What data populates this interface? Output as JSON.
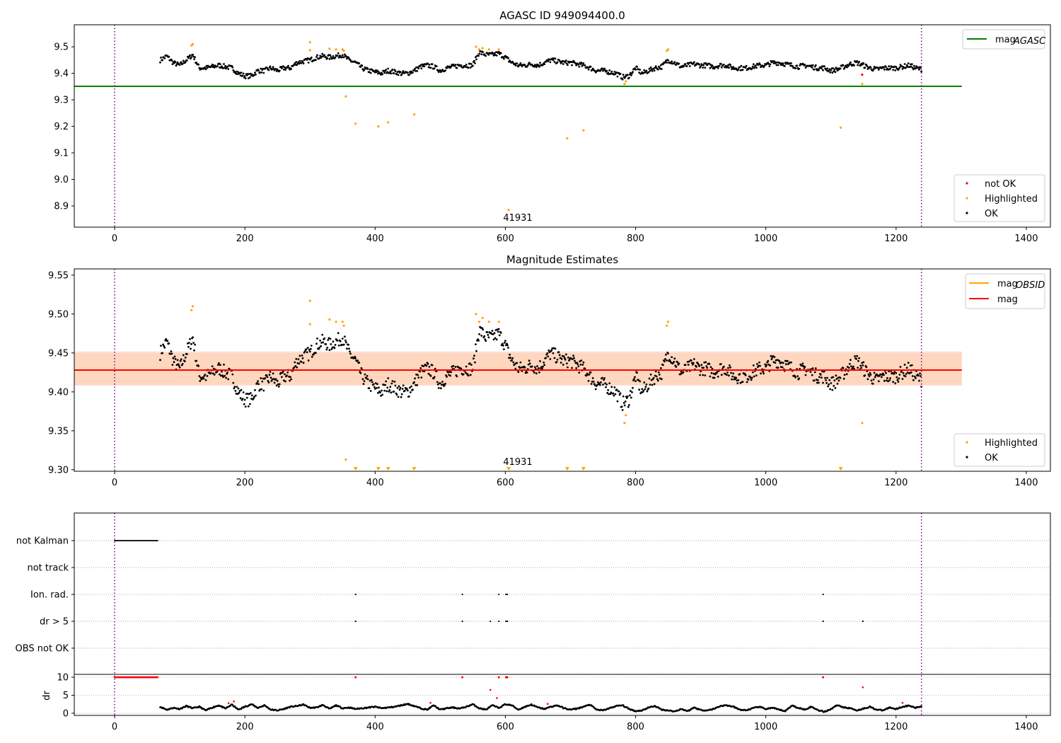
{
  "chart_data": [
    {
      "type": "scatter",
      "title": "AGASC ID 949094400.0",
      "annotation": "41931",
      "xlim": [
        -62,
        1437
      ],
      "ylim": [
        8.82,
        9.583
      ],
      "xticks": [
        "0",
        "200",
        "400",
        "600",
        "800",
        "1000",
        "1200",
        "1400"
      ],
      "xtick_values": [
        0,
        200,
        400,
        600,
        800,
        1000,
        1200,
        1400
      ],
      "yticks": [
        "8.9",
        "9.0",
        "9.1",
        "9.2",
        "9.3",
        "9.4",
        "9.5"
      ],
      "ytick_values": [
        8.9,
        9.0,
        9.1,
        9.2,
        9.3,
        9.4,
        9.5
      ],
      "mag_agasc": 9.351,
      "line_x_range": [
        -62,
        1301
      ],
      "vlines": [
        0,
        1239
      ],
      "legend_lines": [
        {
          "label": "mag",
          "sub": "AGASC",
          "color": "#008000"
        }
      ],
      "legend_points": [
        {
          "label": "not OK",
          "color": "#ff0000"
        },
        {
          "label": "Highlighted",
          "color": "#ffa500"
        },
        {
          "label": "OK",
          "color": "#000000"
        }
      ],
      "not_ok": [
        [
          1148,
          9.395
        ]
      ]
    },
    {
      "type": "scatter",
      "title": "Magnitude Estimates",
      "annotation": "41931",
      "xlim": [
        -62,
        1437
      ],
      "ylim": [
        9.298,
        9.558
      ],
      "xticks": [
        "0",
        "200",
        "400",
        "600",
        "800",
        "1000",
        "1200",
        "1400"
      ],
      "xtick_values": [
        0,
        200,
        400,
        600,
        800,
        1000,
        1200,
        1400
      ],
      "yticks": [
        "9.30",
        "9.35",
        "9.40",
        "9.45",
        "9.50",
        "9.55"
      ],
      "ytick_values": [
        9.3,
        9.35,
        9.4,
        9.45,
        9.5,
        9.55
      ],
      "mag": 9.428,
      "mag_band": [
        9.408,
        9.452
      ],
      "legend_lines": [
        {
          "label": "mag",
          "sub": "OBSID",
          "color": "#ffa500"
        },
        {
          "label": "mag",
          "sub": "",
          "color": "#ff0000"
        }
      ],
      "legend_points": [
        {
          "label": "Highlighted",
          "color": "#ffa500"
        },
        {
          "label": "OK",
          "color": "#000000"
        }
      ]
    },
    {
      "type": "scatter",
      "flag_labels": [
        "not Kalman",
        "not track",
        "Ion. rad.",
        "dr > 5",
        "OBS not OK"
      ],
      "not_kalman_range": [
        0,
        67
      ],
      "ion_rad": [
        370,
        534,
        590,
        601,
        603,
        1088
      ],
      "dr_gt_5": [
        370,
        534,
        577,
        590,
        601,
        603,
        1088,
        1149
      ],
      "ylabel": "dr",
      "dr_yticks": [
        "0",
        "5",
        "10"
      ],
      "dr_ytick_values": [
        0,
        5,
        10
      ],
      "dr_ylim": [
        -0.6,
        10.8
      ],
      "dr_red": [
        [
          577,
          6.5
        ],
        [
          587,
          4.2
        ],
        [
          1149,
          7.2
        ],
        [
          175,
          2.8
        ],
        [
          183,
          3.3
        ],
        [
          485,
          2.9
        ],
        [
          665,
          2.6
        ],
        [
          1210,
          2.9
        ]
      ]
    }
  ],
  "series": {
    "t_start": 70,
    "t_step": 10,
    "mag": [
      9.45,
      9.465,
      9.44,
      9.43,
      9.45,
      9.47,
      9.42,
      9.42,
      9.425,
      9.43,
      9.425,
      9.42,
      9.4,
      9.39,
      9.39,
      9.41,
      9.41,
      9.42,
      9.41,
      9.42,
      9.42,
      9.44,
      9.445,
      9.45,
      9.46,
      9.465,
      9.46,
      9.465,
      9.47,
      9.45,
      9.44,
      9.42,
      9.41,
      9.405,
      9.4,
      9.41,
      9.405,
      9.4,
      9.4,
      9.41,
      9.425,
      9.43,
      9.425,
      9.41,
      9.42,
      9.425,
      9.43,
      9.43,
      9.43,
      9.48,
      9.47,
      9.47,
      9.475,
      9.46,
      9.44,
      9.43,
      9.43,
      9.435,
      9.43,
      9.44,
      9.45,
      9.445,
      9.44,
      9.44,
      9.435,
      9.43,
      9.42,
      9.41,
      9.41,
      9.405,
      9.4,
      9.385,
      9.39,
      9.42,
      9.4,
      9.41,
      9.42,
      9.425,
      9.45,
      9.44,
      9.425,
      9.43,
      9.435,
      9.43,
      9.43,
      9.425,
      9.43,
      9.43,
      9.42,
      9.42,
      9.42,
      9.425,
      9.43,
      9.43,
      9.44,
      9.44,
      9.435,
      9.43,
      9.425,
      9.43,
      9.425,
      9.42,
      9.42,
      9.41,
      9.415,
      9.425,
      9.435,
      9.44,
      9.43,
      9.42,
      9.415,
      9.42,
      9.42,
      9.42,
      9.425,
      9.43,
      9.42,
      9.415
    ],
    "dr": [
      1.8,
      1.0,
      1.5,
      1.2,
      2.0,
      1.4,
      1.8,
      0.8,
      1.6,
      2.2,
      1.3,
      2.4,
      1.0,
      1.8,
      2.5,
      1.5,
      2.2,
      1.0,
      0.8,
      1.2,
      1.8,
      2.0,
      2.4,
      1.5,
      1.6,
      2.3,
      1.2,
      2.2,
      1.4,
      1.6,
      1.2,
      1.4,
      1.6,
      1.8,
      1.4,
      1.6,
      1.8,
      2.2,
      2.6,
      2.0,
      1.4,
      1.0,
      2.2,
      1.0,
      1.4,
      1.6,
      1.3,
      1.8,
      2.5,
      1.4,
      1.0,
      2.2,
      1.5,
      2.5,
      2.2,
      1.0,
      1.8,
      2.4,
      1.6,
      1.2,
      1.8,
      2.2,
      1.4,
      1.0,
      1.3,
      1.8,
      2.4,
      1.0,
      0.8,
      1.4,
      2.0,
      2.2,
      1.2,
      0.6,
      0.8,
      1.6,
      2.0,
      1.0,
      0.8,
      0.5,
      1.2,
      0.6,
      1.6,
      0.9,
      0.8,
      1.2,
      2.0,
      2.2,
      1.8,
      1.0,
      0.8,
      1.4,
      1.8,
      1.2,
      1.5,
      1.0,
      0.6,
      2.2,
      1.4,
      1.1,
      1.8,
      0.9,
      0.4,
      1.2,
      2.3,
      1.6,
      1.4,
      0.8,
      1.3,
      1.8,
      1.0,
      0.8,
      1.6,
      1.2,
      1.8,
      2.1,
      1.5,
      2.0
    ]
  },
  "highlighted": [
    [
      120,
      9.51
    ],
    [
      118,
      9.505
    ],
    [
      300,
      9.517
    ],
    [
      300,
      9.487
    ],
    [
      330,
      9.493
    ],
    [
      340,
      9.49
    ],
    [
      350,
      9.49
    ],
    [
      352,
      9.485
    ],
    [
      355,
      9.313
    ],
    [
      370,
      9.21
    ],
    [
      405,
      9.2
    ],
    [
      420,
      9.215
    ],
    [
      460,
      9.245
    ],
    [
      555,
      9.5
    ],
    [
      560,
      9.49
    ],
    [
      565,
      9.495
    ],
    [
      575,
      9.49
    ],
    [
      590,
      9.49
    ],
    [
      605,
      8.885
    ],
    [
      695,
      9.155
    ],
    [
      720,
      9.185
    ],
    [
      783,
      9.36
    ],
    [
      785,
      9.37
    ],
    [
      850,
      9.49
    ],
    [
      848,
      9.485
    ],
    [
      1115,
      9.195
    ],
    [
      1148,
      9.36
    ]
  ]
}
